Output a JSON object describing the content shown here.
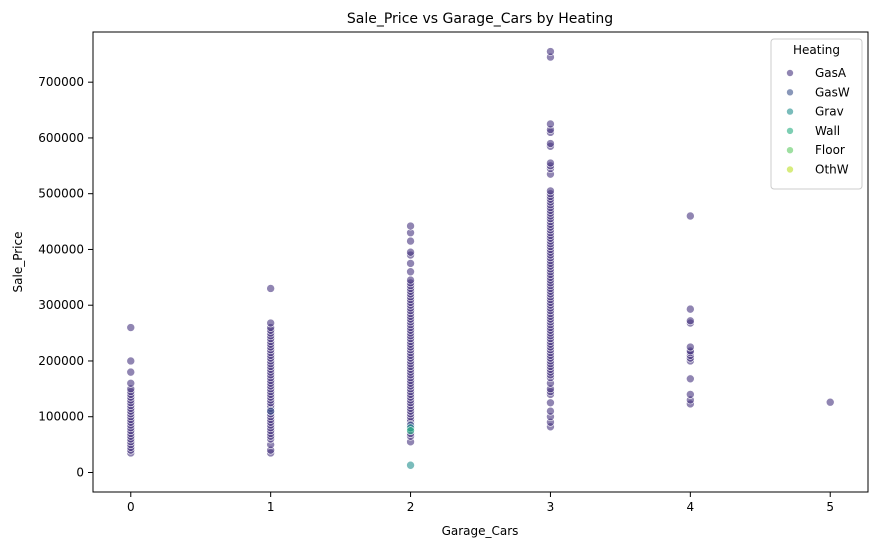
{
  "chart_data": {
    "type": "scatter",
    "title": "Sale_Price vs Garage_Cars by Heating",
    "xlabel": "Garage_Cars",
    "ylabel": "Sale_Price",
    "xlim": [
      -0.27,
      5.27
    ],
    "ylim": [
      -35000,
      790000
    ],
    "xticks": [
      0,
      1,
      2,
      3,
      4,
      5
    ],
    "yticks": [
      0,
      100000,
      200000,
      300000,
      400000,
      500000,
      600000,
      700000
    ],
    "grid": false,
    "legend": {
      "title": "Heating",
      "placement": "top-right"
    },
    "series": [
      {
        "name": "GasA",
        "color": "#46337e",
        "points": [
          [
            0,
            35000
          ],
          [
            0,
            40000
          ],
          [
            0,
            45000
          ],
          [
            0,
            50000
          ],
          [
            0,
            55000
          ],
          [
            0,
            60000
          ],
          [
            0,
            65000
          ],
          [
            0,
            70000
          ],
          [
            0,
            75000
          ],
          [
            0,
            80000
          ],
          [
            0,
            85000
          ],
          [
            0,
            90000
          ],
          [
            0,
            95000
          ],
          [
            0,
            100000
          ],
          [
            0,
            105000
          ],
          [
            0,
            110000
          ],
          [
            0,
            115000
          ],
          [
            0,
            120000
          ],
          [
            0,
            125000
          ],
          [
            0,
            130000
          ],
          [
            0,
            135000
          ],
          [
            0,
            140000
          ],
          [
            0,
            145000
          ],
          [
            0,
            150000
          ],
          [
            0,
            160000
          ],
          [
            0,
            180000
          ],
          [
            0,
            200000
          ],
          [
            0,
            260000
          ],
          [
            1,
            35000
          ],
          [
            1,
            40000
          ],
          [
            1,
            50000
          ],
          [
            1,
            60000
          ],
          [
            1,
            65000
          ],
          [
            1,
            70000
          ],
          [
            1,
            75000
          ],
          [
            1,
            80000
          ],
          [
            1,
            85000
          ],
          [
            1,
            90000
          ],
          [
            1,
            95000
          ],
          [
            1,
            100000
          ],
          [
            1,
            105000
          ],
          [
            1,
            110000
          ],
          [
            1,
            115000
          ],
          [
            1,
            120000
          ],
          [
            1,
            125000
          ],
          [
            1,
            130000
          ],
          [
            1,
            135000
          ],
          [
            1,
            140000
          ],
          [
            1,
            145000
          ],
          [
            1,
            150000
          ],
          [
            1,
            155000
          ],
          [
            1,
            160000
          ],
          [
            1,
            165000
          ],
          [
            1,
            170000
          ],
          [
            1,
            175000
          ],
          [
            1,
            180000
          ],
          [
            1,
            185000
          ],
          [
            1,
            190000
          ],
          [
            1,
            195000
          ],
          [
            1,
            200000
          ],
          [
            1,
            205000
          ],
          [
            1,
            210000
          ],
          [
            1,
            215000
          ],
          [
            1,
            220000
          ],
          [
            1,
            225000
          ],
          [
            1,
            230000
          ],
          [
            1,
            235000
          ],
          [
            1,
            240000
          ],
          [
            1,
            245000
          ],
          [
            1,
            250000
          ],
          [
            1,
            255000
          ],
          [
            1,
            260000
          ],
          [
            1,
            268000
          ],
          [
            1,
            330000
          ],
          [
            2,
            55000
          ],
          [
            2,
            65000
          ],
          [
            2,
            70000
          ],
          [
            2,
            80000
          ],
          [
            2,
            90000
          ],
          [
            2,
            95000
          ],
          [
            2,
            100000
          ],
          [
            2,
            105000
          ],
          [
            2,
            110000
          ],
          [
            2,
            115000
          ],
          [
            2,
            120000
          ],
          [
            2,
            125000
          ],
          [
            2,
            130000
          ],
          [
            2,
            135000
          ],
          [
            2,
            140000
          ],
          [
            2,
            145000
          ],
          [
            2,
            150000
          ],
          [
            2,
            155000
          ],
          [
            2,
            160000
          ],
          [
            2,
            165000
          ],
          [
            2,
            170000
          ],
          [
            2,
            175000
          ],
          [
            2,
            180000
          ],
          [
            2,
            185000
          ],
          [
            2,
            190000
          ],
          [
            2,
            195000
          ],
          [
            2,
            200000
          ],
          [
            2,
            205000
          ],
          [
            2,
            210000
          ],
          [
            2,
            215000
          ],
          [
            2,
            220000
          ],
          [
            2,
            225000
          ],
          [
            2,
            230000
          ],
          [
            2,
            235000
          ],
          [
            2,
            240000
          ],
          [
            2,
            245000
          ],
          [
            2,
            250000
          ],
          [
            2,
            255000
          ],
          [
            2,
            260000
          ],
          [
            2,
            265000
          ],
          [
            2,
            270000
          ],
          [
            2,
            275000
          ],
          [
            2,
            280000
          ],
          [
            2,
            285000
          ],
          [
            2,
            290000
          ],
          [
            2,
            295000
          ],
          [
            2,
            300000
          ],
          [
            2,
            305000
          ],
          [
            2,
            310000
          ],
          [
            2,
            315000
          ],
          [
            2,
            320000
          ],
          [
            2,
            325000
          ],
          [
            2,
            330000
          ],
          [
            2,
            335000
          ],
          [
            2,
            340000
          ],
          [
            2,
            345000
          ],
          [
            2,
            360000
          ],
          [
            2,
            375000
          ],
          [
            2,
            390000
          ],
          [
            2,
            395000
          ],
          [
            2,
            415000
          ],
          [
            2,
            430000
          ],
          [
            2,
            442000
          ],
          [
            3,
            82000
          ],
          [
            3,
            90000
          ],
          [
            3,
            100000
          ],
          [
            3,
            110000
          ],
          [
            3,
            125000
          ],
          [
            3,
            140000
          ],
          [
            3,
            145000
          ],
          [
            3,
            150000
          ],
          [
            3,
            160000
          ],
          [
            3,
            170000
          ],
          [
            3,
            175000
          ],
          [
            3,
            180000
          ],
          [
            3,
            185000
          ],
          [
            3,
            190000
          ],
          [
            3,
            195000
          ],
          [
            3,
            200000
          ],
          [
            3,
            205000
          ],
          [
            3,
            210000
          ],
          [
            3,
            215000
          ],
          [
            3,
            220000
          ],
          [
            3,
            225000
          ],
          [
            3,
            230000
          ],
          [
            3,
            235000
          ],
          [
            3,
            240000
          ],
          [
            3,
            245000
          ],
          [
            3,
            250000
          ],
          [
            3,
            255000
          ],
          [
            3,
            260000
          ],
          [
            3,
            265000
          ],
          [
            3,
            270000
          ],
          [
            3,
            275000
          ],
          [
            3,
            280000
          ],
          [
            3,
            285000
          ],
          [
            3,
            290000
          ],
          [
            3,
            295000
          ],
          [
            3,
            300000
          ],
          [
            3,
            305000
          ],
          [
            3,
            310000
          ],
          [
            3,
            315000
          ],
          [
            3,
            320000
          ],
          [
            3,
            325000
          ],
          [
            3,
            330000
          ],
          [
            3,
            335000
          ],
          [
            3,
            340000
          ],
          [
            3,
            345000
          ],
          [
            3,
            350000
          ],
          [
            3,
            355000
          ],
          [
            3,
            360000
          ],
          [
            3,
            365000
          ],
          [
            3,
            370000
          ],
          [
            3,
            375000
          ],
          [
            3,
            380000
          ],
          [
            3,
            385000
          ],
          [
            3,
            390000
          ],
          [
            3,
            395000
          ],
          [
            3,
            400000
          ],
          [
            3,
            405000
          ],
          [
            3,
            410000
          ],
          [
            3,
            415000
          ],
          [
            3,
            420000
          ],
          [
            3,
            425000
          ],
          [
            3,
            430000
          ],
          [
            3,
            435000
          ],
          [
            3,
            440000
          ],
          [
            3,
            445000
          ],
          [
            3,
            450000
          ],
          [
            3,
            455000
          ],
          [
            3,
            460000
          ],
          [
            3,
            465000
          ],
          [
            3,
            470000
          ],
          [
            3,
            475000
          ],
          [
            3,
            480000
          ],
          [
            3,
            485000
          ],
          [
            3,
            490000
          ],
          [
            3,
            495000
          ],
          [
            3,
            500000
          ],
          [
            3,
            505000
          ],
          [
            3,
            535000
          ],
          [
            3,
            545000
          ],
          [
            3,
            550000
          ],
          [
            3,
            555000
          ],
          [
            3,
            585000
          ],
          [
            3,
            590000
          ],
          [
            3,
            610000
          ],
          [
            3,
            615000
          ],
          [
            3,
            625000
          ],
          [
            3,
            745000
          ],
          [
            3,
            755000
          ],
          [
            4,
            123000
          ],
          [
            4,
            130000
          ],
          [
            4,
            140000
          ],
          [
            4,
            168000
          ],
          [
            4,
            200000
          ],
          [
            4,
            205000
          ],
          [
            4,
            210000
          ],
          [
            4,
            215000
          ],
          [
            4,
            218000
          ],
          [
            4,
            225000
          ],
          [
            4,
            268000
          ],
          [
            4,
            272000
          ],
          [
            4,
            293000
          ],
          [
            4,
            460000
          ],
          [
            5,
            126000
          ]
        ]
      },
      {
        "name": "GasW",
        "color": "#3b528b",
        "points": [
          [
            2,
            85000
          ],
          [
            1,
            110000
          ]
        ]
      },
      {
        "name": "Grav",
        "color": "#21908d",
        "points": [
          [
            2,
            13000
          ],
          [
            2,
            80000
          ]
        ]
      },
      {
        "name": "Wall",
        "color": "#27ad81",
        "points": [
          [
            2,
            75000
          ]
        ]
      },
      {
        "name": "Floor",
        "color": "#5ec962",
        "points": []
      },
      {
        "name": "OthW",
        "color": "#bddf26",
        "points": []
      }
    ]
  }
}
